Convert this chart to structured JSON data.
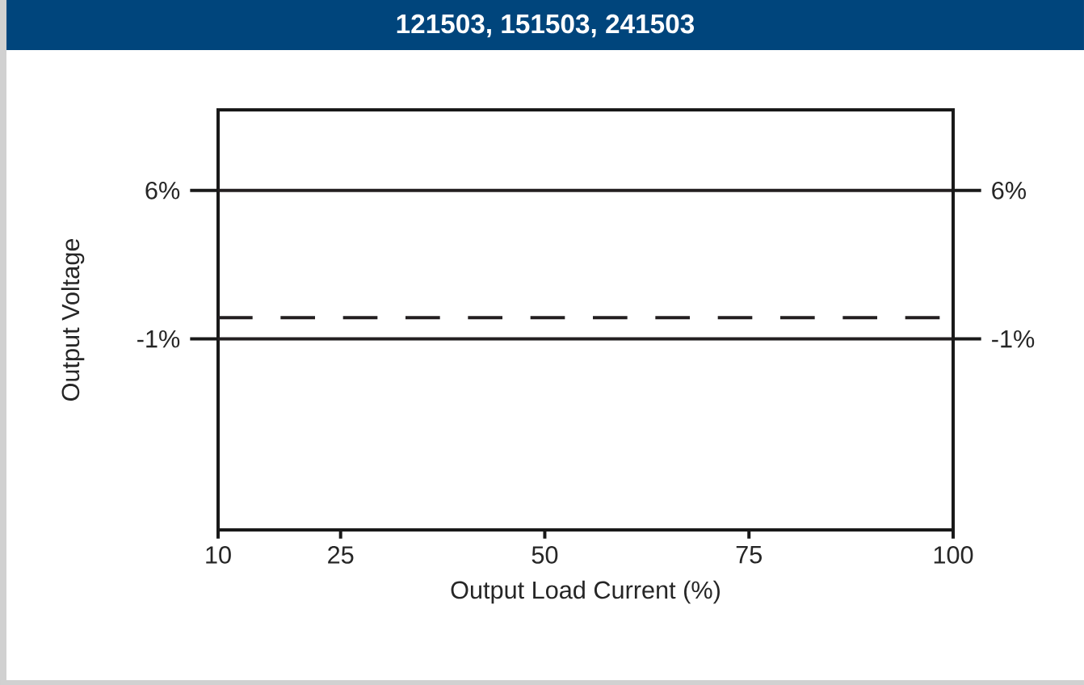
{
  "chart_data": {
    "type": "line",
    "title": "121503, 151503, 241503",
    "xlabel": "Output Load Current (%)",
    "ylabel": "Output Voltage",
    "x": [
      10,
      100
    ],
    "series": [
      {
        "color": "#231f20",
        "values": [
          0,
          0
        ],
        "line_style": "dashed"
      }
    ],
    "xlim": [
      10,
      100
    ],
    "xticks": [
      10,
      25,
      50,
      75,
      100
    ],
    "ylim": [
      -10,
      9.8
    ],
    "yticks": [
      {
        "value": -1,
        "label": "-1%"
      },
      {
        "value": 6,
        "label": "6%"
      }
    ],
    "y2lim": [
      -10,
      9.8
    ],
    "y2ticks": [
      {
        "value": -1,
        "label": "-1%"
      },
      {
        "value": 6,
        "label": "6%"
      }
    ],
    "ref_lines": [
      {
        "axis": "y",
        "value": 6,
        "color": "#231f20"
      },
      {
        "axis": "y",
        "value": -1,
        "color": "#231f20"
      }
    ],
    "marker": "none"
  }
}
